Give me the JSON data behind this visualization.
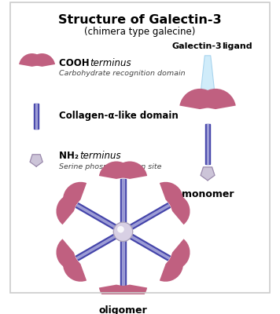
{
  "title": "Structure of Galectin-3",
  "subtitle": "(chimera type galecine)",
  "bg_color": "#ffffff",
  "mauve_color": "#c06080",
  "purple_dark": "#4444aa",
  "purple_mid": "#7777bb",
  "purple_light": "#aaaadd",
  "grey_color": "#c8c0d8",
  "light_blue": "#cce8f8",
  "monomer_label": "monomer",
  "oligomer_label": "oligomer",
  "galectin3_label": "Galectin-3",
  "ligand_label": "ligand"
}
